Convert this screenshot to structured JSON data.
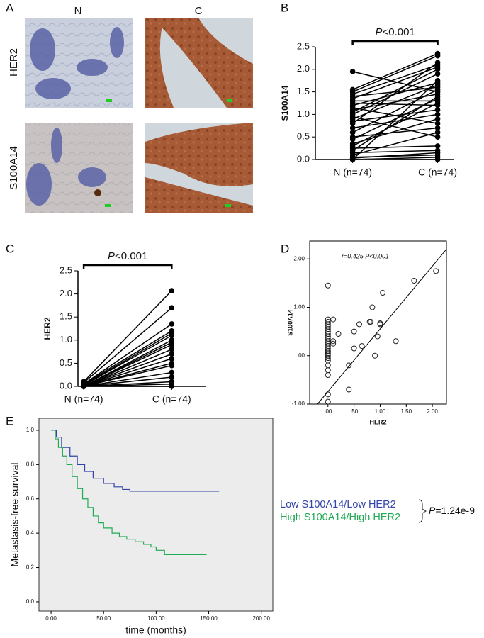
{
  "figure": {
    "panel_labels": [
      "A",
      "B",
      "C",
      "D",
      "E"
    ],
    "image_columns": [
      "N",
      "C"
    ],
    "image_rows": [
      "HER2",
      "S100A14"
    ]
  },
  "chart_data": [
    {
      "type": "paired",
      "annotation": "P<0.001",
      "ylabel": "S100A14",
      "categories": [
        "N (n=74)",
        "C (n=74)"
      ],
      "ylim": [
        0,
        2.5
      ],
      "yticks": [
        {
          "value": 0,
          "label": "0.0"
        },
        {
          "value": 0.5,
          "label": "0.5"
        },
        {
          "value": 1,
          "label": "1.0"
        },
        {
          "value": 1.5,
          "label": "1.5"
        },
        {
          "value": 2,
          "label": "2.0"
        },
        {
          "value": 2.5,
          "label": "2.5"
        }
      ],
      "color": "#000000",
      "pairs": [
        [
          1.95,
          1.5
        ],
        [
          1.55,
          2.35
        ],
        [
          1.5,
          2.3
        ],
        [
          1.45,
          2.1
        ],
        [
          1.4,
          1.6
        ],
        [
          1.35,
          2.05
        ],
        [
          1.3,
          1.3
        ],
        [
          1.25,
          1.2
        ],
        [
          1.2,
          1.7
        ],
        [
          1.15,
          0.8
        ],
        [
          1.1,
          1.45
        ],
        [
          1.05,
          2.0
        ],
        [
          1.0,
          1.9
        ],
        [
          0.95,
          0.5
        ],
        [
          0.9,
          1.65
        ],
        [
          0.85,
          1.1
        ],
        [
          0.8,
          2.15
        ],
        [
          0.7,
          1.0
        ],
        [
          0.6,
          1.55
        ],
        [
          0.5,
          0.7
        ],
        [
          0.45,
          1.35
        ],
        [
          0.35,
          0.9
        ],
        [
          0.3,
          1.25
        ],
        [
          0.25,
          0.3
        ],
        [
          0.2,
          1.4
        ],
        [
          0.15,
          0.2
        ],
        [
          0.1,
          0.6
        ],
        [
          0.05,
          0.1
        ],
        [
          0.03,
          0.15
        ],
        [
          0.0,
          1.75
        ],
        [
          0.0,
          0.05
        ],
        [
          0.0,
          0.0
        ]
      ]
    },
    {
      "type": "paired",
      "annotation": "P<0.001",
      "ylabel": "HER2",
      "categories": [
        "N (n=74)",
        "C (n=74)"
      ],
      "ylim": [
        0,
        2.5
      ],
      "yticks": [
        {
          "value": 0,
          "label": "0.0"
        },
        {
          "value": 0.5,
          "label": "0.5"
        },
        {
          "value": 1,
          "label": "1.0"
        },
        {
          "value": 1.5,
          "label": "1.5"
        },
        {
          "value": 2,
          "label": "2.0"
        },
        {
          "value": 2.5,
          "label": "2.5"
        }
      ],
      "color": "#000000",
      "pairs": [
        [
          0.1,
          2.07
        ],
        [
          0.08,
          1.7
        ],
        [
          0.05,
          1.35
        ],
        [
          0.05,
          1.2
        ],
        [
          0.03,
          1.15
        ],
        [
          0.02,
          1.1
        ],
        [
          0.0,
          1.0
        ],
        [
          0.0,
          0.95
        ],
        [
          0.0,
          0.9
        ],
        [
          0.0,
          0.8
        ],
        [
          0.0,
          0.7
        ],
        [
          0.0,
          0.6
        ],
        [
          0.0,
          0.5
        ],
        [
          0.0,
          0.45
        ],
        [
          0.0,
          0.3
        ],
        [
          0.0,
          0.2
        ],
        [
          0.0,
          0.1
        ],
        [
          0.0,
          0.05
        ],
        [
          0.0,
          0.0
        ]
      ]
    },
    {
      "type": "scatter",
      "annotation": "r=0.425  P<0.001",
      "xlabel": "HER2",
      "ylabel": "S100A14",
      "xlim": [
        -0.35,
        2.27
      ],
      "ylim": [
        -1.0,
        2.37
      ],
      "xticks": [
        {
          "value": 0,
          "label": ".00"
        },
        {
          "value": 0.5,
          "label": ".50"
        },
        {
          "value": 1,
          "label": "1.00"
        },
        {
          "value": 1.5,
          "label": "1.50"
        },
        {
          "value": 2,
          "label": "2.00"
        }
      ],
      "yticks": [
        {
          "value": -1,
          "label": "-1.00"
        },
        {
          "value": 0,
          "label": ".00"
        },
        {
          "value": 1,
          "label": "1.00"
        },
        {
          "value": 2,
          "label": "2.00"
        }
      ],
      "x": [
        0,
        0,
        0,
        0,
        0,
        0,
        0,
        0,
        0,
        0,
        0,
        0,
        0,
        0,
        0,
        0,
        0,
        0,
        0,
        0,
        0,
        0,
        0,
        0,
        0,
        0,
        0.1,
        0.1,
        0.1,
        0.2,
        0.4,
        0.4,
        0.5,
        0.5,
        0.6,
        0.65,
        0.8,
        0.82,
        0.85,
        0.9,
        0.95,
        1.0,
        1.0,
        1.05,
        1.3,
        1.65,
        2.07
      ],
      "y": [
        1.45,
        0.75,
        0.7,
        0.65,
        0.6,
        0.55,
        0.5,
        0.45,
        0.4,
        0.35,
        0.3,
        0.25,
        0.2,
        0.15,
        0.1,
        0.08,
        0.05,
        0.03,
        0.0,
        -0.05,
        -0.1,
        -0.2,
        -0.3,
        -0.4,
        -0.8,
        -0.95,
        0.75,
        0.3,
        0.25,
        0.45,
        -0.2,
        -0.7,
        0.15,
        0.5,
        0.65,
        0.2,
        0.7,
        0.7,
        1.0,
        0.0,
        0.4,
        0.65,
        0.67,
        1.3,
        0.3,
        1.55,
        1.75
      ],
      "trendline": {
        "x": [
          -0.2,
          2.27
        ],
        "y": [
          -1.0,
          2.2
        ]
      }
    },
    {
      "type": "step",
      "xlabel": "time (months)",
      "ylabel": "Metastasis-free survival",
      "annotation": "P=1.24e-9",
      "xlim": [
        -11.5,
        211
      ],
      "ylim": [
        -0.054,
        1.07
      ],
      "xticks": [
        {
          "value": 0,
          "label": "0.00"
        },
        {
          "value": 50,
          "label": "50.00"
        },
        {
          "value": 100,
          "label": "100.00"
        },
        {
          "value": 150,
          "label": "150.00"
        },
        {
          "value": 200,
          "label": "200.00"
        }
      ],
      "yticks": [
        {
          "value": 0,
          "label": "0.0"
        },
        {
          "value": 0.2,
          "label": "0.2"
        },
        {
          "value": 0.4,
          "label": "0.4"
        },
        {
          "value": 0.6,
          "label": "0.6"
        },
        {
          "value": 0.8,
          "label": "0.8"
        },
        {
          "value": 1,
          "label": "1.0"
        }
      ],
      "series": [
        {
          "name": "Low S100A14/Low HER2",
          "color": "#3344aa",
          "x": [
            0,
            5,
            10,
            18,
            25,
            32,
            40,
            50,
            60,
            68,
            75,
            160
          ],
          "y": [
            1.0,
            0.96,
            0.9,
            0.85,
            0.8,
            0.76,
            0.72,
            0.69,
            0.67,
            0.655,
            0.645,
            0.645
          ]
        },
        {
          "name": "High S100A14/High HER2",
          "color": "#22aa55",
          "x": [
            0,
            4,
            7,
            11,
            15,
            20,
            25,
            30,
            35,
            40,
            45,
            50,
            58,
            65,
            72,
            80,
            88,
            95,
            100,
            108,
            148
          ],
          "y": [
            1.0,
            0.95,
            0.9,
            0.85,
            0.8,
            0.73,
            0.66,
            0.6,
            0.55,
            0.5,
            0.46,
            0.43,
            0.4,
            0.38,
            0.365,
            0.35,
            0.335,
            0.32,
            0.3,
            0.275,
            0.275
          ]
        }
      ]
    }
  ]
}
